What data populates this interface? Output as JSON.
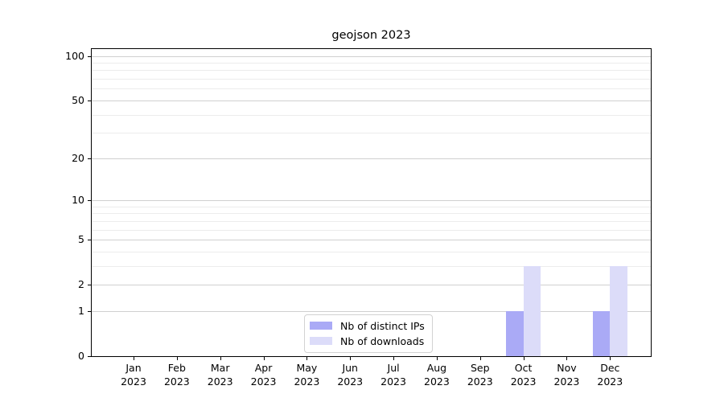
{
  "chart_data": {
    "type": "bar",
    "title": "geojson 2023",
    "categories": [
      {
        "month": "Jan",
        "year": "2023"
      },
      {
        "month": "Feb",
        "year": "2023"
      },
      {
        "month": "Mar",
        "year": "2023"
      },
      {
        "month": "Apr",
        "year": "2023"
      },
      {
        "month": "May",
        "year": "2023"
      },
      {
        "month": "Jun",
        "year": "2023"
      },
      {
        "month": "Jul",
        "year": "2023"
      },
      {
        "month": "Aug",
        "year": "2023"
      },
      {
        "month": "Sep",
        "year": "2023"
      },
      {
        "month": "Oct",
        "year": "2023"
      },
      {
        "month": "Nov",
        "year": "2023"
      },
      {
        "month": "Dec",
        "year": "2023"
      }
    ],
    "series": [
      {
        "name": "Nb of distinct IPs",
        "color": "#aaaaf6",
        "values": [
          0,
          0,
          0,
          0,
          0,
          0,
          0,
          0,
          0,
          1,
          0,
          1
        ]
      },
      {
        "name": "Nb of downloads",
        "color": "#dcdcf9",
        "values": [
          0,
          0,
          0,
          0,
          0,
          0,
          0,
          0,
          0,
          3,
          0,
          3
        ]
      }
    ],
    "xlabel": "",
    "ylabel": "",
    "yscale": "symlog",
    "y_major_ticks": [
      0,
      1,
      2,
      5,
      10,
      20,
      50,
      100
    ],
    "y_minor_gridlines": [
      3,
      4,
      6,
      7,
      8,
      9,
      30,
      40,
      60,
      70,
      80,
      90
    ],
    "ylim": [
      0,
      113
    ],
    "grid": "horizontal, major and minor",
    "legend_position": "lower center"
  },
  "colors": {
    "grid_major": "#d0d0d0",
    "grid_minor": "#ececec",
    "axis": "#000000",
    "background": "#ffffff"
  }
}
